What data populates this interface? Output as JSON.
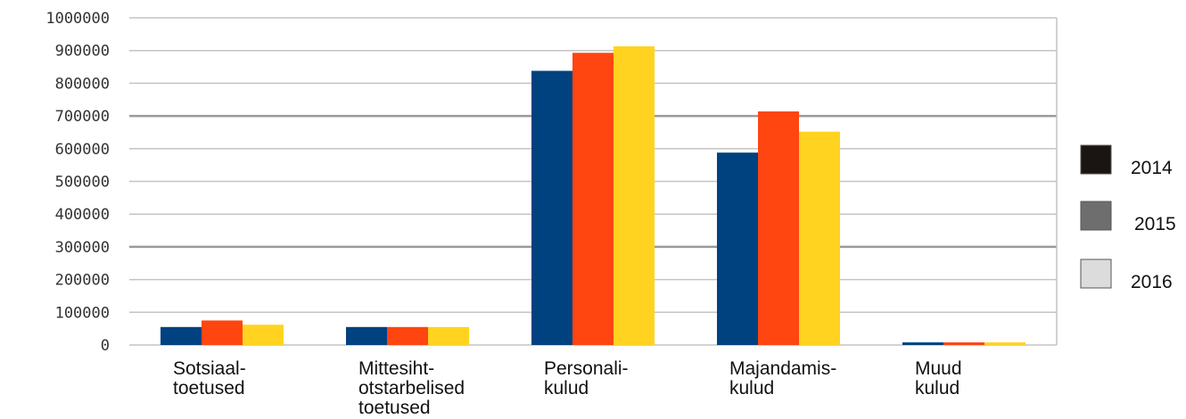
{
  "chart_data": {
    "type": "bar",
    "title": "",
    "xlabel": "",
    "ylabel": "",
    "ylim": [
      0,
      1000000
    ],
    "yticks": [
      0,
      100000,
      200000,
      300000,
      400000,
      500000,
      600000,
      700000,
      800000,
      900000,
      1000000
    ],
    "ytick_labels": [
      "0",
      "100000",
      "200000",
      "300000",
      "400000",
      "500000",
      "600000",
      "700000",
      "800000",
      "900000",
      "1000000"
    ],
    "categories": [
      [
        "Sotsiaal-",
        "toetused"
      ],
      [
        "Mittesiht-",
        "otstarbelised",
        "toetused"
      ],
      [
        "Personali-",
        "kulud"
      ],
      [
        "Majandamis-",
        "kulud"
      ],
      [
        "Muud",
        "kulud"
      ]
    ],
    "series": [
      {
        "name": "2014",
        "color": "#00417F",
        "legend_color": "#1A1512",
        "values": [
          55000,
          55000,
          838000,
          588000,
          8000
        ]
      },
      {
        "name": "2015",
        "color": "#FF4510",
        "legend_color": "#6E6E6E",
        "values": [
          75000,
          55000,
          893000,
          714000,
          8000
        ]
      },
      {
        "name": "2016",
        "color": "#FFD31F",
        "legend_color": "#DCDCDC",
        "values": [
          62000,
          55000,
          913000,
          652000,
          8000
        ]
      }
    ],
    "grid": true,
    "legend_position": "right"
  }
}
